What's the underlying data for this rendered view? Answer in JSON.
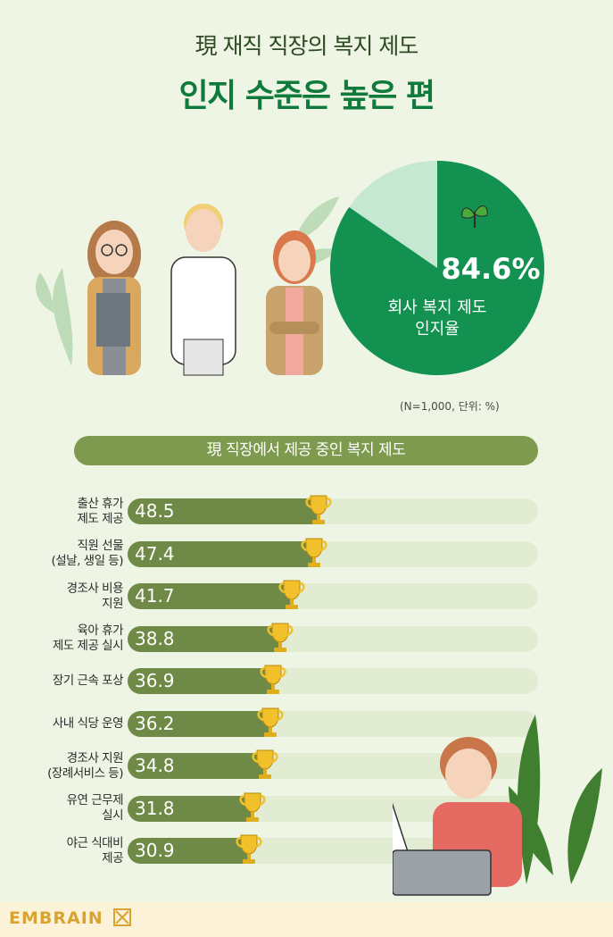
{
  "header": {
    "title_line1": "現 재직 직장의 복지 제도",
    "title_line2": "인지 수준은 높은 편"
  },
  "colors": {
    "pie_main": "#139150",
    "pie_rest": "#c4e8d2",
    "bar_fill": "#6e8a46",
    "bar_track": "#e2ecd3",
    "title_green": "#0f7a3b"
  },
  "pie": {
    "value": 84.6,
    "value_label": "84.6%",
    "label_line1": "회사 복지 제도",
    "label_line2": "인지율"
  },
  "note": "(N=1,000, 단위: %)",
  "section_title": "現 직장에서 제공 중인 복지 제도",
  "chart_data": {
    "type": "bar",
    "orientation": "horizontal",
    "title": "現 직장에서 제공 중인 복지 제도",
    "xlim": [
      0,
      100
    ],
    "categories": [
      [
        "출산 휴가",
        "제도 제공"
      ],
      [
        "직원 선물",
        "(설날, 생일 등)"
      ],
      [
        "경조사 비용",
        "지원"
      ],
      [
        "육아 휴가",
        "제도 제공 실시"
      ],
      [
        "장기 근속 포상"
      ],
      [
        "사내 식당 운영"
      ],
      [
        "경조사 지원",
        "(장례서비스 등)"
      ],
      [
        "유연 근무제",
        "실시"
      ],
      [
        "야근 식대비",
        "제공"
      ]
    ],
    "values": [
      48.5,
      47.4,
      41.7,
      38.8,
      36.9,
      36.2,
      34.8,
      31.8,
      30.9
    ],
    "value_labels": [
      "48.5",
      "47.4",
      "41.7",
      "38.8",
      "36.9",
      "36.2",
      "34.8",
      "31.8",
      "30.9"
    ]
  },
  "footer": {
    "logo_text": "EMBRAIN"
  }
}
